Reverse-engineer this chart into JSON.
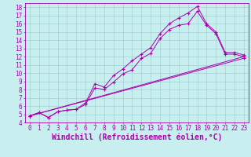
{
  "line1_x": [
    0,
    1,
    2,
    3,
    4,
    5,
    6,
    7,
    8,
    9,
    10,
    11,
    12,
    13,
    14,
    15,
    16,
    17,
    18,
    19,
    20,
    21,
    22,
    23
  ],
  "line1_y": [
    4.8,
    5.2,
    4.6,
    5.3,
    5.5,
    5.6,
    6.4,
    8.7,
    8.3,
    9.7,
    10.5,
    11.5,
    12.3,
    13.1,
    14.8,
    16.0,
    16.7,
    17.3,
    18.1,
    16.0,
    15.0,
    12.5,
    12.5,
    12.2
  ],
  "line2_x": [
    0,
    1,
    2,
    3,
    4,
    5,
    6,
    7,
    8,
    9,
    10,
    11,
    12,
    13,
    14,
    15,
    16,
    17,
    18,
    19,
    20,
    21,
    22,
    23
  ],
  "line2_y": [
    4.8,
    5.2,
    4.6,
    5.3,
    5.5,
    5.6,
    6.2,
    8.2,
    8.0,
    8.9,
    9.9,
    10.4,
    11.8,
    12.4,
    14.2,
    15.3,
    15.8,
    16.0,
    17.5,
    15.8,
    14.8,
    12.3,
    12.3,
    12.0
  ],
  "line3_x": [
    0,
    23
  ],
  "line3_y": [
    4.8,
    12.0
  ],
  "line4_x": [
    0,
    23
  ],
  "line4_y": [
    4.8,
    11.8
  ],
  "color": "#aa00aa",
  "bg_color": "#c8eef0",
  "grid_color": "#99cccc",
  "xlabel": "Windchill (Refroidissement éolien,°C)",
  "ylim": [
    4,
    18.5
  ],
  "xlim": [
    -0.5,
    23.5
  ],
  "yticks": [
    4,
    5,
    6,
    7,
    8,
    9,
    10,
    11,
    12,
    13,
    14,
    15,
    16,
    17,
    18
  ],
  "xticks": [
    0,
    1,
    2,
    3,
    4,
    5,
    6,
    7,
    8,
    9,
    10,
    11,
    12,
    13,
    14,
    15,
    16,
    17,
    18,
    19,
    20,
    21,
    22,
    23
  ],
  "tick_fontsize": 5.5,
  "xlabel_fontsize": 7.0,
  "xlabel_bold": true
}
